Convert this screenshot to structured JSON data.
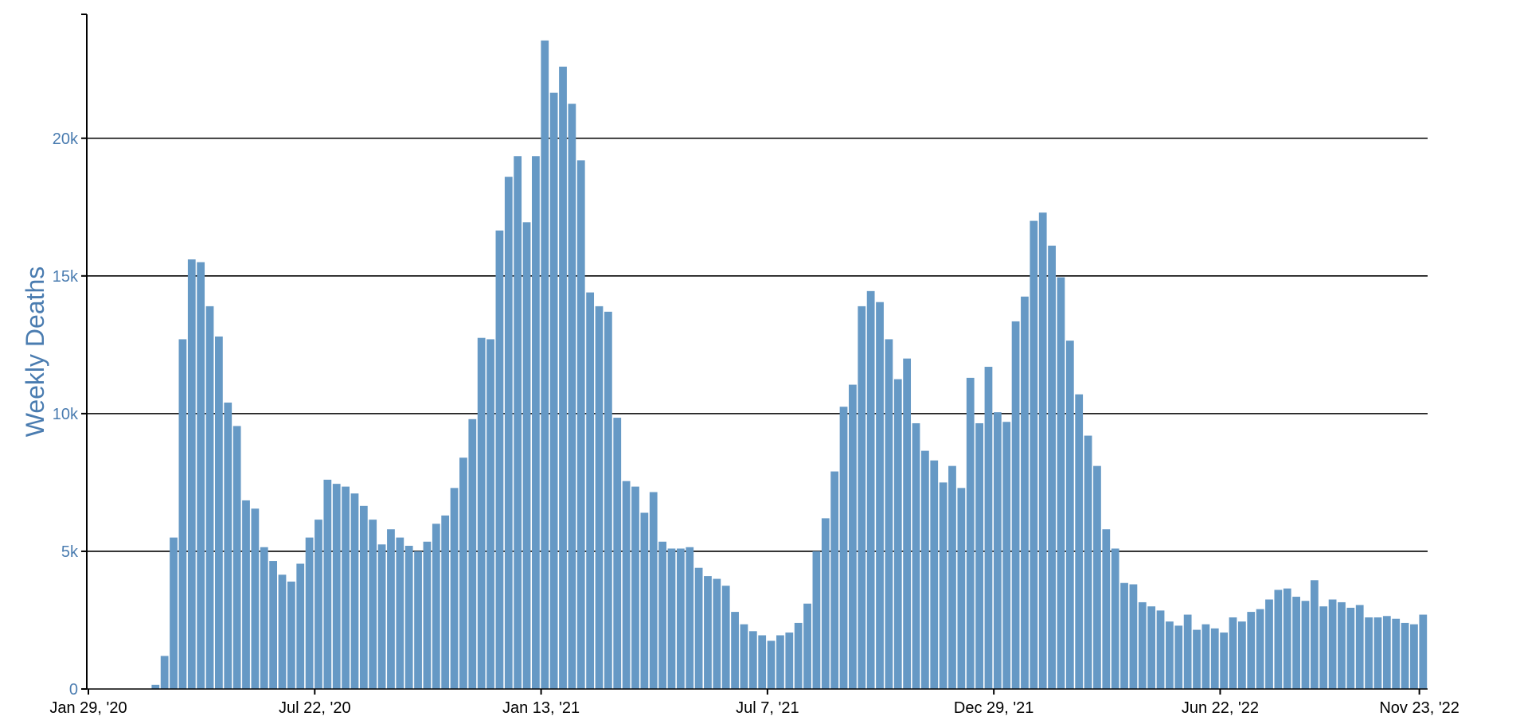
{
  "colors": {
    "bar": "#6699c5",
    "axis_label": "#4a7cb0",
    "gridline": "#000000",
    "axis": "#000000"
  },
  "chart_data": {
    "type": "bar",
    "title": "",
    "xlabel": "",
    "ylabel": "Weekly Deaths",
    "ylim": [
      0,
      24500
    ],
    "grid": true,
    "y_ticks": [
      {
        "value": 0,
        "label": "0"
      },
      {
        "value": 5000,
        "label": "5k"
      },
      {
        "value": 10000,
        "label": "10k"
      },
      {
        "value": 15000,
        "label": "15k"
      },
      {
        "value": 20000,
        "label": "20k"
      }
    ],
    "x_ticks": [
      {
        "index": 0,
        "label": "Jan 29, '20"
      },
      {
        "index": 25,
        "label": "Jul 22, '20"
      },
      {
        "index": 50,
        "label": "Jan 13, '21"
      },
      {
        "index": 75,
        "label": "Jul 7, '21"
      },
      {
        "index": 100,
        "label": "Dec 29, '21"
      },
      {
        "index": 125,
        "label": "Jun 22, '22"
      },
      {
        "index": 147,
        "label": "Nov 23, '22"
      }
    ],
    "values": [
      0,
      0,
      0,
      0,
      0,
      0,
      0,
      150,
      1200,
      5500,
      12700,
      15600,
      15500,
      13900,
      12800,
      10400,
      9550,
      6850,
      6550,
      5150,
      4650,
      4150,
      3900,
      4550,
      5500,
      6150,
      7600,
      7450,
      7350,
      7100,
      6650,
      6150,
      5250,
      5800,
      5500,
      5200,
      5000,
      5350,
      6000,
      6300,
      7300,
      8400,
      9800,
      12750,
      12700,
      16650,
      18600,
      19350,
      16950,
      19350,
      23550,
      21650,
      22600,
      21250,
      19200,
      14400,
      13900,
      13700,
      9850,
      7550,
      7350,
      6400,
      7150,
      5350,
      5100,
      5100,
      5150,
      4400,
      4100,
      4000,
      3750,
      2800,
      2350,
      2100,
      1950,
      1750,
      1950,
      2050,
      2400,
      3100,
      5000,
      6200,
      7900,
      10250,
      11050,
      13900,
      14450,
      14050,
      12700,
      11250,
      12000,
      9650,
      8650,
      8300,
      7500,
      8100,
      7300,
      11300,
      9650,
      11700,
      10050,
      9700,
      13350,
      14250,
      17000,
      17300,
      16100,
      14950,
      12650,
      10700,
      9200,
      8100,
      5800,
      5100,
      3850,
      3800,
      3150,
      3000,
      2850,
      2450,
      2300,
      2700,
      2150,
      2350,
      2200,
      2050,
      2600,
      2450,
      2800,
      2900,
      3250,
      3600,
      3650,
      3350,
      3200,
      3950,
      3000,
      3250,
      3150,
      2950,
      3050,
      2600,
      2600,
      2650,
      2550,
      2400,
      2350,
      2700
    ]
  }
}
